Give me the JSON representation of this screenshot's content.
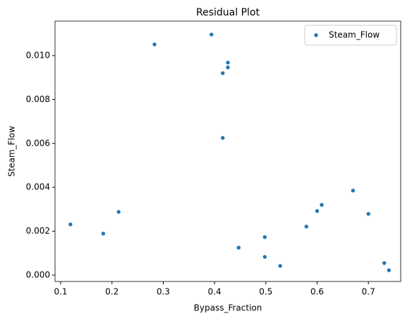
{
  "chart_data": {
    "type": "scatter",
    "title": "Residual Plot",
    "x_label": "Bypass_Fraction",
    "y_label": "Steam_Flow",
    "legend": "upper right",
    "series": [
      {
        "name": "Steam_Flow",
        "color": "#1f77b4",
        "x": [
          0.119,
          0.183,
          0.213,
          0.283,
          0.394,
          0.426,
          0.426,
          0.416,
          0.416,
          0.447,
          0.498,
          0.498,
          0.528,
          0.579,
          0.6,
          0.609,
          0.67,
          0.7,
          0.731,
          0.74
        ],
        "values": [
          0.00231,
          0.00189,
          0.00288,
          0.01051,
          0.01096,
          0.00968,
          0.00946,
          0.0092,
          0.00625,
          0.00125,
          0.00173,
          0.00083,
          0.00042,
          0.00221,
          0.00292,
          0.0032,
          0.00385,
          0.00279,
          0.00055,
          0.00022
        ]
      }
    ],
    "xlim": [
      0.089,
      0.763
    ],
    "ylim": [
      -0.00029,
      0.01157
    ],
    "xticks": [
      0.1,
      0.2,
      0.3,
      0.4,
      0.5,
      0.6,
      0.7
    ],
    "yticks": [
      {
        "value": 0,
        "label": "0.000"
      },
      {
        "value": 0.002,
        "label": "0.002"
      },
      {
        "value": 0.004,
        "label": "0.004"
      },
      {
        "value": 0.006,
        "label": "0.006"
      },
      {
        "value": 0.008,
        "label": "0.008"
      },
      {
        "value": 0.01,
        "label": "0.010"
      }
    ]
  }
}
